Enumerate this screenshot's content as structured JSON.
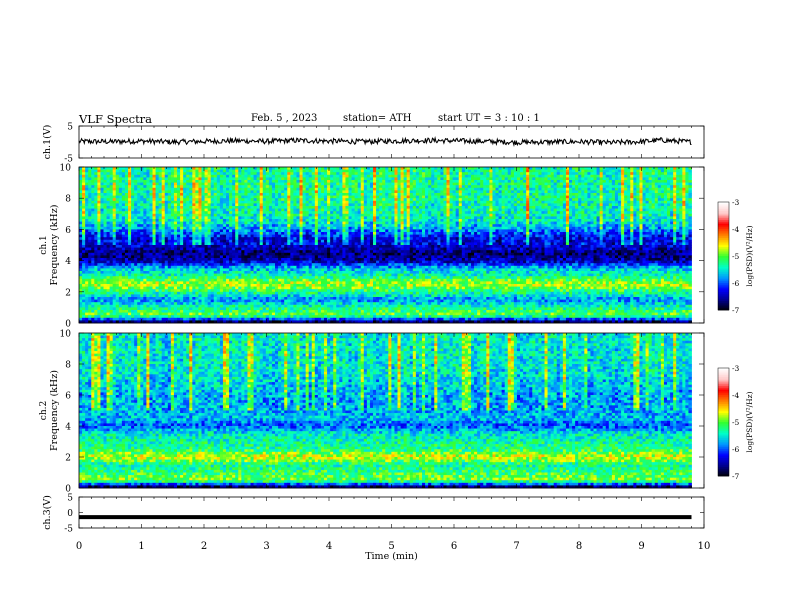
{
  "header": {
    "title": "VLF  Spectra",
    "date": "Feb. 5  , 2023",
    "station": "station= ATH",
    "start_ut": "start  UT  =   3  : 10 : 1"
  },
  "colors": {
    "background": "#ffffff",
    "trace": "#000000",
    "colormap": [
      "#000000",
      "#00008c",
      "#0000ff",
      "#0096ff",
      "#00ffc8",
      "#32ff32",
      "#ffff00",
      "#ff8000",
      "#ff0000",
      "#ffc8c8",
      "#ffffff"
    ]
  },
  "chart_data": [
    {
      "type": "line",
      "name": "ch1-waveform",
      "ylabel": "ch.1(V)",
      "ylim": [
        -5,
        5
      ],
      "yticks": [
        "5",
        "-5"
      ],
      "x_range_min": [
        0,
        9.8
      ],
      "approx_level_v": 0,
      "x": [
        0,
        0.5,
        1,
        1.5,
        2,
        2.5,
        3,
        3.5,
        4,
        4.5,
        5,
        5.5,
        6,
        6.5,
        7,
        7.5,
        8,
        8.5,
        9,
        9.3,
        9.8
      ],
      "y": [
        0.2,
        0.1,
        0.3,
        0.0,
        0.2,
        0.4,
        0.2,
        0.5,
        0.3,
        0.1,
        0.3,
        0.5,
        0.4,
        0.2,
        -0.1,
        0.0,
        0.1,
        -0.2,
        0.1,
        0.6,
        0.0
      ]
    },
    {
      "type": "heatmap",
      "name": "ch1-spectrogram",
      "ylabel": "ch.1\nFrequency  (kHz)",
      "ylim": [
        0,
        10
      ],
      "yticks": [
        "0",
        "2",
        "4",
        "6",
        "8",
        "10"
      ],
      "x_range_min": [
        0,
        9.8
      ],
      "colorbar": {
        "label": "log(PSD)(V²/Hz)",
        "range": [
          -7,
          -3
        ],
        "ticks": [
          "-3",
          "-4",
          "-5",
          "-6",
          "-7"
        ]
      },
      "band_profile_khz": [
        0,
        0.5,
        1,
        1.5,
        2,
        2.5,
        3,
        3.5,
        4,
        4.5,
        5,
        5.5,
        6,
        6.5,
        7,
        8,
        9,
        10
      ],
      "band_level_logpsd": [
        -7,
        -4.6,
        -5.0,
        -5.6,
        -4.9,
        -4.3,
        -5.0,
        -5.4,
        -6.4,
        -6.6,
        -6.2,
        -6.1,
        -5.6,
        -5.2,
        -5.1,
        -5.0,
        -5.0,
        -5.0
      ]
    },
    {
      "type": "heatmap",
      "name": "ch2-spectrogram",
      "ylabel": "ch.2\nFrequency  (kHz)",
      "ylim": [
        0,
        10
      ],
      "yticks": [
        "0",
        "2",
        "4",
        "6",
        "8",
        "10"
      ],
      "x_range_min": [
        0,
        9.8
      ],
      "colorbar": {
        "label": "log(PSD)(V²/Hz)",
        "range": [
          -7,
          -3
        ],
        "ticks": [
          "-3",
          "-4",
          "-5",
          "-6",
          "-7"
        ]
      },
      "band_profile_khz": [
        0,
        0.5,
        1,
        1.5,
        2,
        2.5,
        3,
        3.5,
        4,
        4.5,
        5,
        5.5,
        6,
        7,
        8,
        9,
        10
      ],
      "band_level_logpsd": [
        -7,
        -4.5,
        -4.8,
        -5.0,
        -4.2,
        -4.9,
        -5.0,
        -5.2,
        -5.8,
        -5.4,
        -5.5,
        -5.5,
        -5.5,
        -5.3,
        -5.2,
        -5.2,
        -5.2
      ]
    },
    {
      "type": "line",
      "name": "ch3-waveform",
      "ylabel": "ch.3(V)",
      "ylim": [
        -5,
        5
      ],
      "yticks": [
        "5",
        "0",
        "-5"
      ],
      "x_range_min": [
        0,
        9.8
      ],
      "x": [
        0,
        9.8
      ],
      "y": [
        -1.5,
        -1.5
      ]
    }
  ],
  "xaxis": {
    "label": "Time  (min)",
    "xlim": [
      0,
      10
    ],
    "ticks": [
      "0",
      "1",
      "2",
      "3",
      "4",
      "5",
      "6",
      "7",
      "8",
      "9",
      "10"
    ]
  }
}
